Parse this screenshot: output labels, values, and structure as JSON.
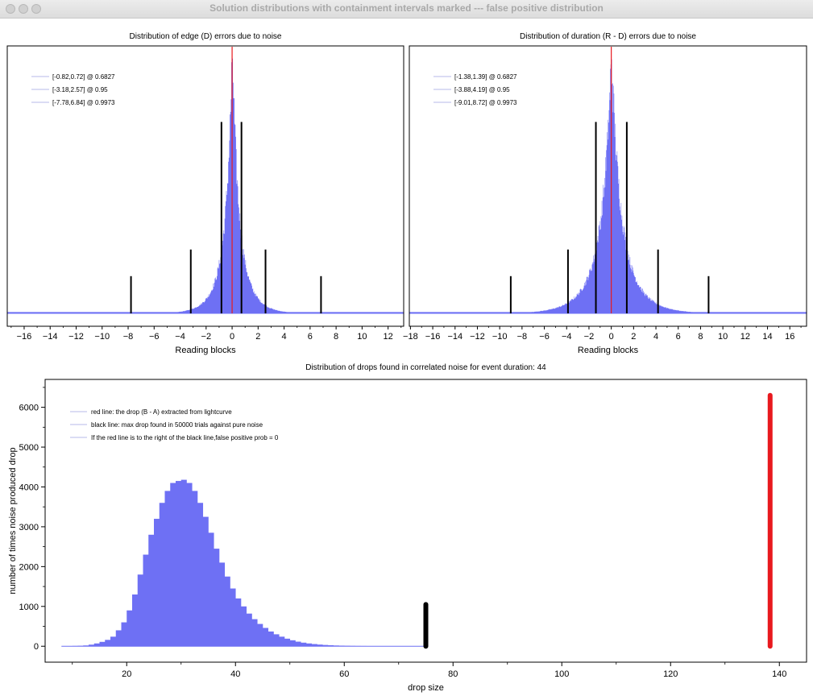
{
  "window": {
    "title": "Solution distributions with containment intervals marked --- false positive distribution"
  },
  "chart_data": [
    {
      "type": "bar",
      "title": "Distribution of edge (D) errors due to noise",
      "xlabel": "Reading blocks",
      "ylabel": "",
      "xlim": [
        -17.3,
        13.2
      ],
      "ylim": [
        0,
        1
      ],
      "x_ticks": [
        -16,
        -14,
        -12,
        -10,
        -8,
        -6,
        -4,
        -2,
        0,
        2,
        4,
        6,
        8,
        10,
        12
      ],
      "y_ticks_shown": false,
      "histogram": {
        "center": 0.0,
        "spread": 0.36,
        "peak": 1.0,
        "tail_floor": 0.005
      },
      "red_line": {
        "x": 0,
        "y": 1.0
      },
      "interval_lines": [
        {
          "x": -0.82,
          "height": 0.72
        },
        {
          "x": 0.72,
          "height": 0.72
        },
        {
          "x": -3.18,
          "height": 0.24
        },
        {
          "x": 2.57,
          "height": 0.24
        },
        {
          "x": -7.78,
          "height": 0.14
        },
        {
          "x": 6.84,
          "height": 0.14
        }
      ],
      "legend": [
        "[-0.82,0.72] @ 0.6827",
        "[-3.18,2.57] @ 0.95",
        "[-7.78,6.84] @ 0.9973"
      ],
      "legend_position": "top-left"
    },
    {
      "type": "bar",
      "title": "Distribution of duration (R - D) errors due to noise",
      "xlabel": "Reading blocks",
      "ylabel": "",
      "xlim": [
        -18.1,
        17.5
      ],
      "ylim": [
        0,
        1
      ],
      "x_ticks": [
        -18,
        -16,
        -14,
        -12,
        -10,
        -8,
        -6,
        -4,
        -2,
        0,
        2,
        4,
        6,
        8,
        10,
        12,
        14,
        16
      ],
      "y_ticks_shown": false,
      "histogram": {
        "center": 0.0,
        "spread": 0.62,
        "peak": 0.98,
        "tail_floor": 0.005
      },
      "red_line": {
        "x": 0,
        "y": 1.0
      },
      "interval_lines": [
        {
          "x": -1.38,
          "height": 0.72
        },
        {
          "x": 1.39,
          "height": 0.72
        },
        {
          "x": -3.88,
          "height": 0.24
        },
        {
          "x": 4.19,
          "height": 0.24
        },
        {
          "x": -9.01,
          "height": 0.14
        },
        {
          "x": 8.72,
          "height": 0.14
        }
      ],
      "legend": [
        "[-1.38,1.39] @ 0.6827",
        "[-3.88,4.19] @ 0.95",
        "[-9.01,8.72] @ 0.9973"
      ],
      "legend_position": "top-left"
    },
    {
      "type": "bar",
      "title": "Distribution of drops found in correlated noise for event duration: 44",
      "xlabel": "drop size",
      "ylabel": "number of times noise produced drop",
      "xlim": [
        5,
        145
      ],
      "ylim": [
        -400,
        6700
      ],
      "x_ticks": [
        20,
        40,
        60,
        80,
        100,
        120,
        140
      ],
      "y_ticks": [
        0,
        1000,
        2000,
        3000,
        4000,
        5000,
        6000
      ],
      "bin_width": 1,
      "bins": [
        [
          9,
          5
        ],
        [
          10,
          8
        ],
        [
          11,
          12
        ],
        [
          12,
          20
        ],
        [
          13,
          40
        ],
        [
          14,
          70
        ],
        [
          15,
          110
        ],
        [
          16,
          160
        ],
        [
          17,
          240
        ],
        [
          18,
          400
        ],
        [
          19,
          600
        ],
        [
          20,
          900
        ],
        [
          21,
          1300
        ],
        [
          22,
          1800
        ],
        [
          23,
          2300
        ],
        [
          24,
          2800
        ],
        [
          25,
          3200
        ],
        [
          26,
          3600
        ],
        [
          27,
          3900
        ],
        [
          28,
          4100
        ],
        [
          29,
          4150
        ],
        [
          30,
          4180
        ],
        [
          31,
          4100
        ],
        [
          32,
          3900
        ],
        [
          33,
          3600
        ],
        [
          34,
          3250
        ],
        [
          35,
          2850
        ],
        [
          36,
          2450
        ],
        [
          37,
          2100
        ],
        [
          38,
          1750
        ],
        [
          39,
          1450
        ],
        [
          40,
          1200
        ],
        [
          41,
          1000
        ],
        [
          42,
          820
        ],
        [
          43,
          680
        ],
        [
          44,
          560
        ],
        [
          45,
          460
        ],
        [
          46,
          370
        ],
        [
          47,
          300
        ],
        [
          48,
          240
        ],
        [
          49,
          190
        ],
        [
          50,
          150
        ],
        [
          51,
          115
        ],
        [
          52,
          90
        ],
        [
          53,
          70
        ],
        [
          54,
          55
        ],
        [
          55,
          42
        ],
        [
          56,
          32
        ],
        [
          57,
          25
        ],
        [
          58,
          19
        ],
        [
          59,
          15
        ],
        [
          60,
          12
        ],
        [
          61,
          9
        ],
        [
          62,
          7
        ],
        [
          63,
          6
        ],
        [
          64,
          5
        ],
        [
          65,
          4
        ],
        [
          66,
          3
        ],
        [
          67,
          3
        ],
        [
          68,
          2
        ],
        [
          69,
          2
        ],
        [
          70,
          2
        ],
        [
          71,
          1
        ],
        [
          72,
          1
        ],
        [
          73,
          1
        ],
        [
          74,
          1
        ]
      ],
      "red_line": {
        "x": 138.3,
        "y": 6300
      },
      "black_line": {
        "x": 75,
        "y": 1050
      },
      "legend": [
        "red line: the drop (B - A) extracted from lightcurve",
        "black line: max drop found in 50000 trials against pure noise",
        "If the red line is to the right of the black line,false positive prob = 0"
      ],
      "legend_position": "top-left"
    }
  ],
  "colors": {
    "histogram": "#6e70f4",
    "red_line": "#e8191e",
    "black_line": "#000000",
    "legend_swatch": "#cfd0f0"
  }
}
